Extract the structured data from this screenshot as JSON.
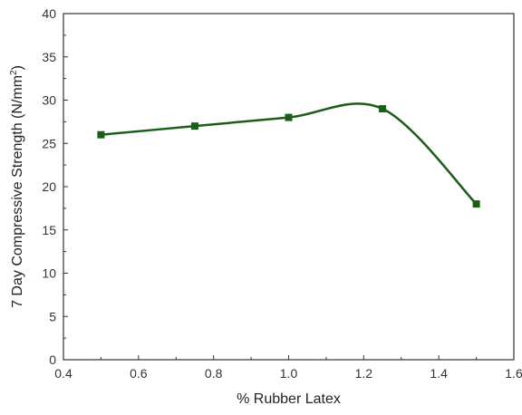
{
  "chart_data": {
    "type": "line",
    "title": "",
    "xlabel": "% Rubber Latex",
    "ylabel_main": "7 Day Compressive Strength (N/mm",
    "ylabel_sup": "2",
    "ylabel_close": ")",
    "xlim": [
      0.4,
      1.6
    ],
    "ylim": [
      0,
      40
    ],
    "xticks": [
      0.4,
      0.6,
      0.8,
      1.0,
      1.2,
      1.4,
      1.6
    ],
    "xtick_labels": [
      "0.4",
      "0.6",
      "0.8",
      "1.0",
      "1.2",
      "1.4",
      "1.6"
    ],
    "yticks": [
      0,
      5,
      10,
      15,
      20,
      25,
      30,
      35,
      40
    ],
    "ytick_labels": [
      "0",
      "5",
      "10",
      "15",
      "20",
      "25",
      "30",
      "35",
      "40"
    ],
    "grid": false,
    "legend": "none",
    "series": [
      {
        "x": [
          0.5,
          0.75,
          1.0,
          1.25,
          1.5
        ],
        "y": [
          26,
          27,
          28,
          29,
          18
        ],
        "marker": "square",
        "smooth": true,
        "color": "#1a5e1a"
      }
    ]
  }
}
